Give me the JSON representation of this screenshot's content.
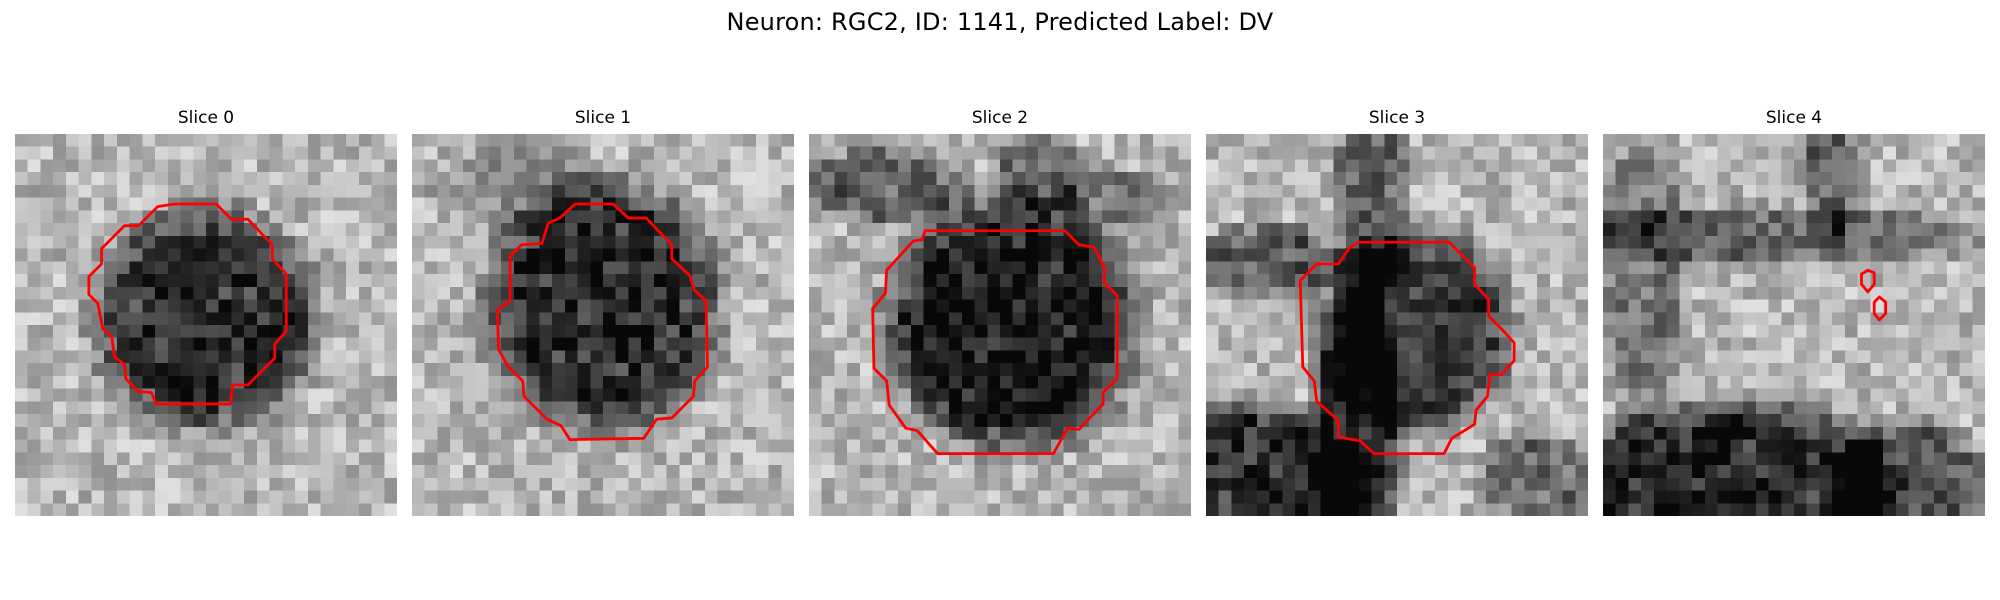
{
  "figure": {
    "title": "Neuron: RGC2, ID: 1141, Predicted Label: DV"
  },
  "panels": [
    {
      "title": "Slice 0",
      "seed": 11,
      "contour_color": "#ff0000"
    },
    {
      "title": "Slice 1",
      "seed": 23,
      "contour_color": "#ff0000"
    },
    {
      "title": "Slice 2",
      "seed": 37,
      "contour_color": "#ff0000"
    },
    {
      "title": "Slice 3",
      "seed": 53,
      "contour_color": "#ff0000"
    },
    {
      "title": "Slice 4",
      "seed": 71,
      "contour_color": "#ff0000"
    }
  ]
}
